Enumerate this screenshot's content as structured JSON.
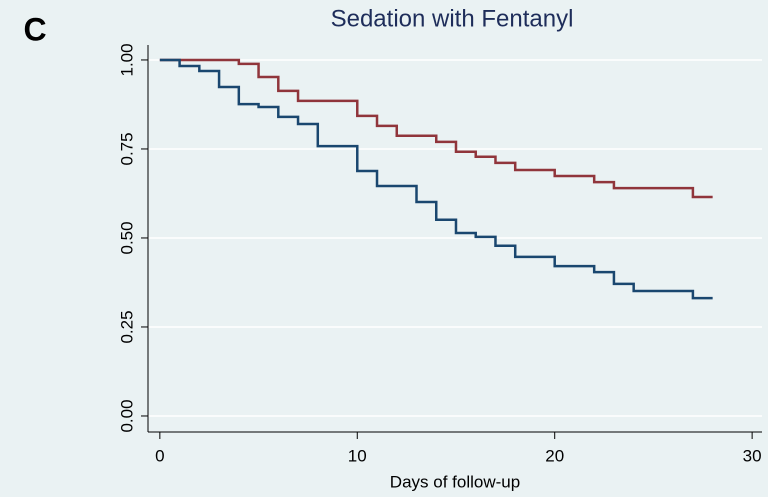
{
  "panel_label": "C",
  "chart_data": {
    "type": "step",
    "title": "Sedation with Fentanyl",
    "xlabel": "Days of follow-up",
    "xlim": [
      -0.6,
      30.5
    ],
    "ylim": [
      -0.045,
      1.042
    ],
    "xticks": [
      0,
      10,
      20,
      30
    ],
    "yticks": [
      {
        "value": 0,
        "label": "0.00"
      },
      {
        "value": 0.25,
        "label": "0.25"
      },
      {
        "value": 0.5,
        "label": "0.50"
      },
      {
        "value": 0.75,
        "label": "0.75"
      },
      {
        "value": 1,
        "label": "1.00"
      }
    ],
    "grid": true,
    "series": [
      {
        "color": "#90353b",
        "x": [
          0,
          4,
          5,
          6,
          7,
          10,
          11,
          12,
          14,
          15,
          16,
          17,
          18,
          20,
          22,
          23,
          27,
          28
        ],
        "values": [
          1.0,
          0.989,
          0.952,
          0.913,
          0.885,
          0.843,
          0.815,
          0.787,
          0.77,
          0.742,
          0.728,
          0.711,
          0.691,
          0.674,
          0.657,
          0.64,
          0.615,
          0.615
        ]
      },
      {
        "color": "#1a476f",
        "x": [
          0,
          1,
          2,
          3,
          4,
          5,
          6,
          7,
          8,
          10,
          11,
          13,
          14,
          15,
          16,
          17,
          18,
          20,
          22,
          23,
          24,
          27,
          28
        ],
        "values": [
          1.0,
          0.983,
          0.969,
          0.924,
          0.876,
          0.868,
          0.84,
          0.82,
          0.758,
          0.688,
          0.646,
          0.601,
          0.551,
          0.514,
          0.503,
          0.478,
          0.447,
          0.421,
          0.404,
          0.371,
          0.351,
          0.331,
          0.331
        ]
      }
    ]
  }
}
